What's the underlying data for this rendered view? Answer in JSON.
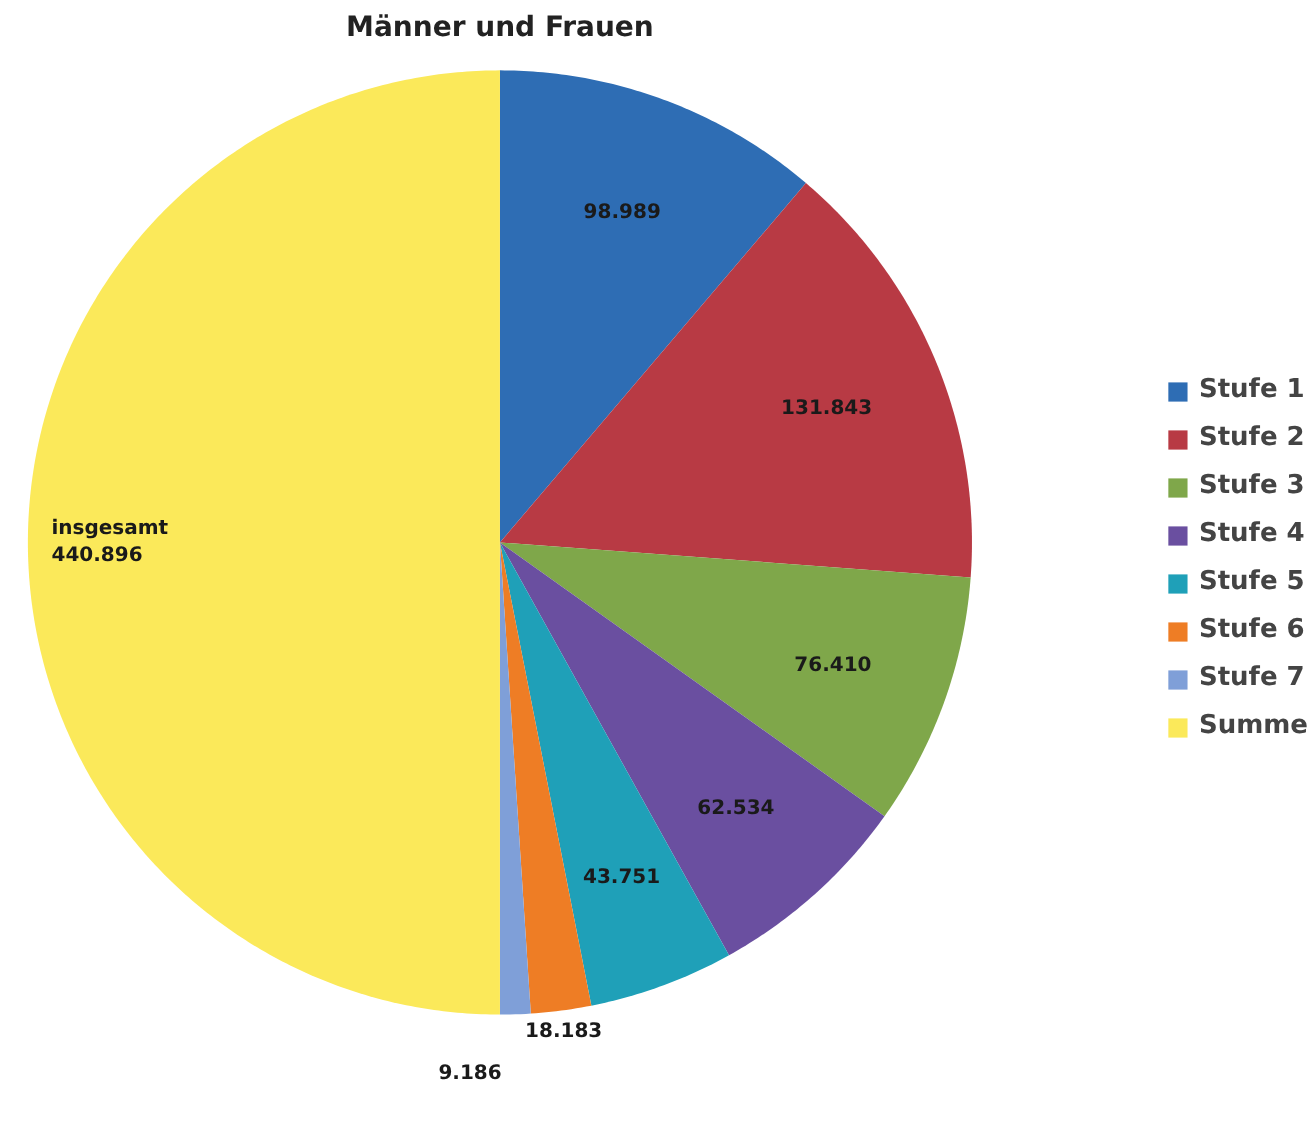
{
  "chart_data": {
    "type": "pie",
    "title": "Männer und Frauen",
    "categories": [
      "Stufe 1",
      "Stufe 2",
      "Stufe 3",
      "Stufe 4",
      "Stufe 5",
      "Stufe 6",
      "Stufe 7",
      "Summe"
    ],
    "values": [
      98989,
      131843,
      76410,
      62534,
      43751,
      18183,
      9186,
      440896
    ],
    "colors": [
      "#2e6db4",
      "#b83a44",
      "#7fa74a",
      "#6a4fa0",
      "#1fa0b8",
      "#ee7d25",
      "#7f9fd8",
      "#fbe95a"
    ],
    "value_labels": [
      "98.989",
      "131.843",
      "76.410",
      "62.534",
      "43.751",
      "18.183",
      "9.186",
      "insgesamt\n440.896"
    ],
    "legend": "right"
  }
}
